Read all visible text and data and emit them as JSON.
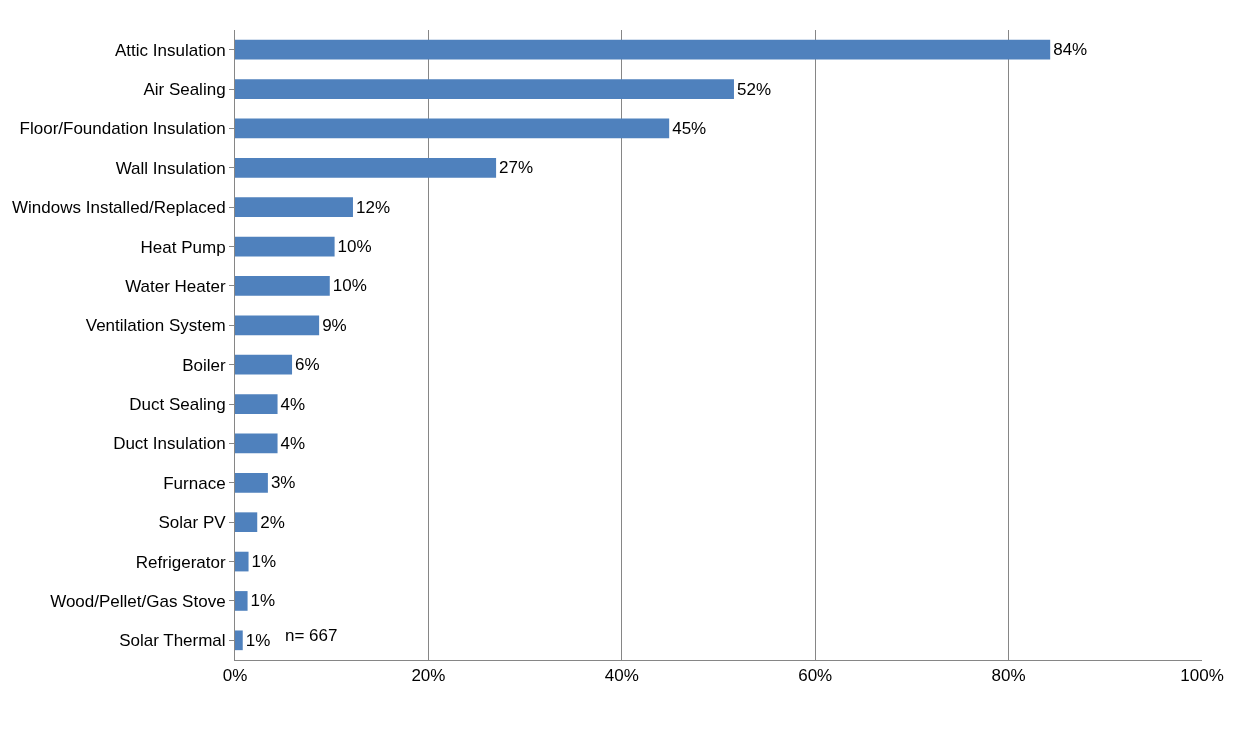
{
  "chart_data": {
    "type": "bar",
    "orientation": "horizontal",
    "categories": [
      "Attic Insulation",
      "Air Sealing",
      "Floor/Foundation Insulation",
      "Wall Insulation",
      "Windows Installed/Replaced",
      "Heat Pump",
      "Water Heater",
      "Ventilation System",
      "Boiler",
      "Duct Sealing",
      "Duct Insulation",
      "Furnace",
      "Solar PV",
      "Refrigerator",
      "Wood/Pellet/Gas Stove",
      "Solar Thermal"
    ],
    "values": [
      84.3,
      51.6,
      44.9,
      27.0,
      12.2,
      10.3,
      9.8,
      8.7,
      5.9,
      4.4,
      4.4,
      3.4,
      2.3,
      1.4,
      1.3,
      0.8
    ],
    "value_labels": [
      "84%",
      "52%",
      "45%",
      "27%",
      "12%",
      "10%",
      "10%",
      "9%",
      "6%",
      "4%",
      "4%",
      "3%",
      "2%",
      "1%",
      "1%",
      "1%"
    ],
    "color": "#4f81bd",
    "xlim": [
      0,
      100
    ],
    "xticks": [
      {
        "value": 0,
        "label": "0%"
      },
      {
        "value": 20,
        "label": "20%"
      },
      {
        "value": 40,
        "label": "40%"
      },
      {
        "value": 60,
        "label": "60%"
      },
      {
        "value": 80,
        "label": "80%"
      },
      {
        "value": 100,
        "label": "100%"
      }
    ],
    "grid": "x",
    "legend": false,
    "annotations": [
      "n= 667"
    ]
  }
}
